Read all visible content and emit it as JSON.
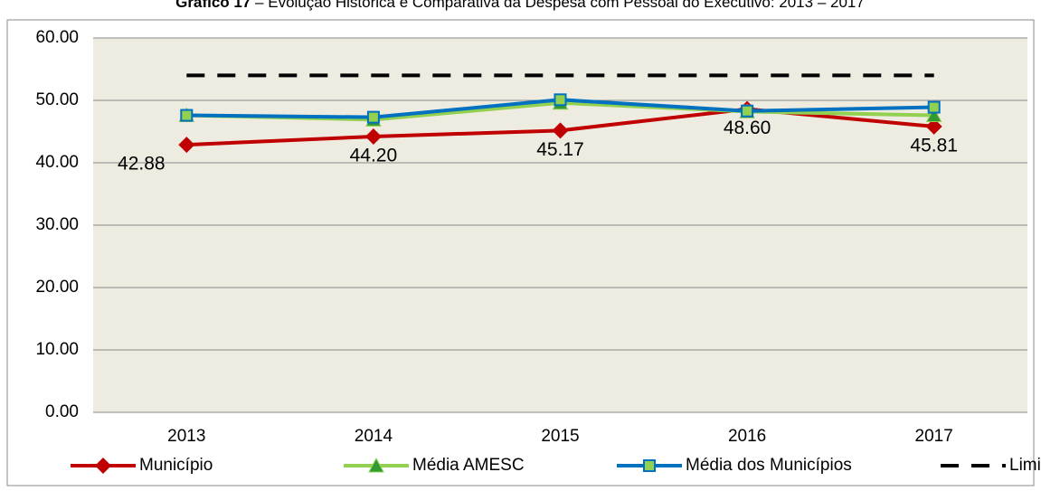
{
  "chart_data": {
    "type": "line",
    "title_prefix": "Gráfico 17",
    "title": "– Evolução Histórica e Comparativa da Despesa com Pessoal do Executivo: 2013 – 2017",
    "categories": [
      "2013",
      "2014",
      "2015",
      "2016",
      "2017"
    ],
    "series": [
      {
        "name": "Município",
        "color": "#c00000",
        "marker": "diamond",
        "values": [
          42.88,
          44.2,
          45.17,
          48.6,
          45.81
        ],
        "value_labels": [
          "42.88",
          "44.20",
          "45.17",
          "48.60",
          "45.81"
        ]
      },
      {
        "name": "Média AMESC",
        "color": "#92d050",
        "marker": "triangle",
        "values": [
          47.6,
          46.9,
          49.6,
          48.2,
          47.6
        ]
      },
      {
        "name": "Média dos Municípios",
        "color": "#0070c0",
        "marker": "square",
        "values": [
          47.6,
          47.3,
          50.1,
          48.3,
          48.9
        ]
      },
      {
        "name": "Limite",
        "color": "#000000",
        "dashed": true,
        "values": [
          54,
          54,
          54,
          54,
          54
        ]
      }
    ],
    "ylim": [
      0,
      60
    ],
    "yticks": [
      {
        "value": 0,
        "label": "0.00"
      },
      {
        "value": 10,
        "label": "10.00"
      },
      {
        "value": 20,
        "label": "20.00"
      },
      {
        "value": 30,
        "label": "30.00"
      },
      {
        "value": 40,
        "label": "40.00"
      },
      {
        "value": 50,
        "label": "50.00"
      },
      {
        "value": 60,
        "label": "60.00"
      }
    ],
    "grid": true,
    "legend": "bottom"
  }
}
